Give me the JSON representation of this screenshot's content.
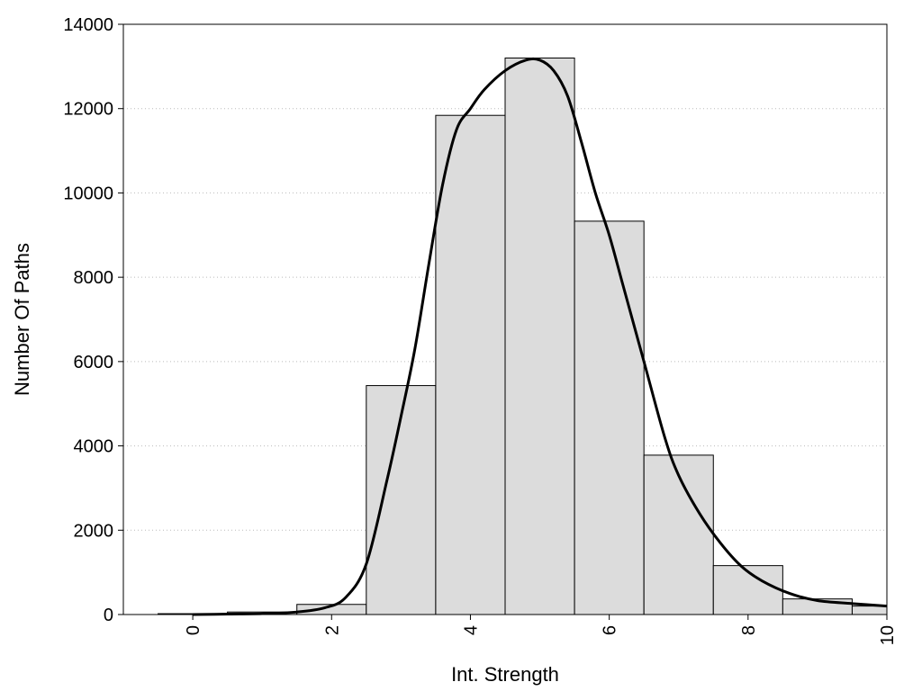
{
  "chart_data": {
    "type": "bar",
    "xlabel": "Int. Strength",
    "ylabel": "Number Of Paths",
    "xlim": [
      -1,
      10
    ],
    "ylim": [
      0,
      14000
    ],
    "xticks": [
      "0",
      "2",
      "4",
      "6",
      "8",
      "10"
    ],
    "yticks": [
      "0",
      "2000",
      "4000",
      "6000",
      "8000",
      "10000",
      "12000",
      "14000"
    ],
    "grid": "horizontal dotted",
    "bar_color": "#dcdcdc",
    "bars": [
      {
        "x": 0,
        "value": 20
      },
      {
        "x": 1,
        "value": 60
      },
      {
        "x": 2,
        "value": 240
      },
      {
        "x": 3,
        "value": 5430
      },
      {
        "x": 4,
        "value": 11840
      },
      {
        "x": 5,
        "value": 13200
      },
      {
        "x": 6,
        "value": 9330
      },
      {
        "x": 7,
        "value": 3780
      },
      {
        "x": 8,
        "value": 1160
      },
      {
        "x": 9,
        "value": 370
      },
      {
        "x": 10,
        "value": 200
      }
    ],
    "curve": {
      "color": "#000000",
      "points": [
        [
          0,
          0
        ],
        [
          0.5,
          10
        ],
        [
          1,
          20
        ],
        [
          1.5,
          60
        ],
        [
          1.9,
          160
        ],
        [
          2.2,
          400
        ],
        [
          2.5,
          1200
        ],
        [
          2.8,
          3200
        ],
        [
          3.0,
          4700
        ],
        [
          3.2,
          6300
        ],
        [
          3.4,
          8300
        ],
        [
          3.6,
          10200
        ],
        [
          3.8,
          11500
        ],
        [
          4.0,
          12000
        ],
        [
          4.2,
          12450
        ],
        [
          4.5,
          12900
        ],
        [
          4.8,
          13150
        ],
        [
          5.0,
          13150
        ],
        [
          5.2,
          12900
        ],
        [
          5.4,
          12300
        ],
        [
          5.6,
          11200
        ],
        [
          5.8,
          10000
        ],
        [
          6.0,
          9000
        ],
        [
          6.2,
          7800
        ],
        [
          6.5,
          6000
        ],
        [
          6.8,
          4200
        ],
        [
          7.0,
          3300
        ],
        [
          7.3,
          2400
        ],
        [
          7.6,
          1700
        ],
        [
          7.9,
          1150
        ],
        [
          8.2,
          800
        ],
        [
          8.6,
          500
        ],
        [
          9.0,
          330
        ],
        [
          9.5,
          260
        ],
        [
          10.0,
          200
        ]
      ]
    }
  }
}
